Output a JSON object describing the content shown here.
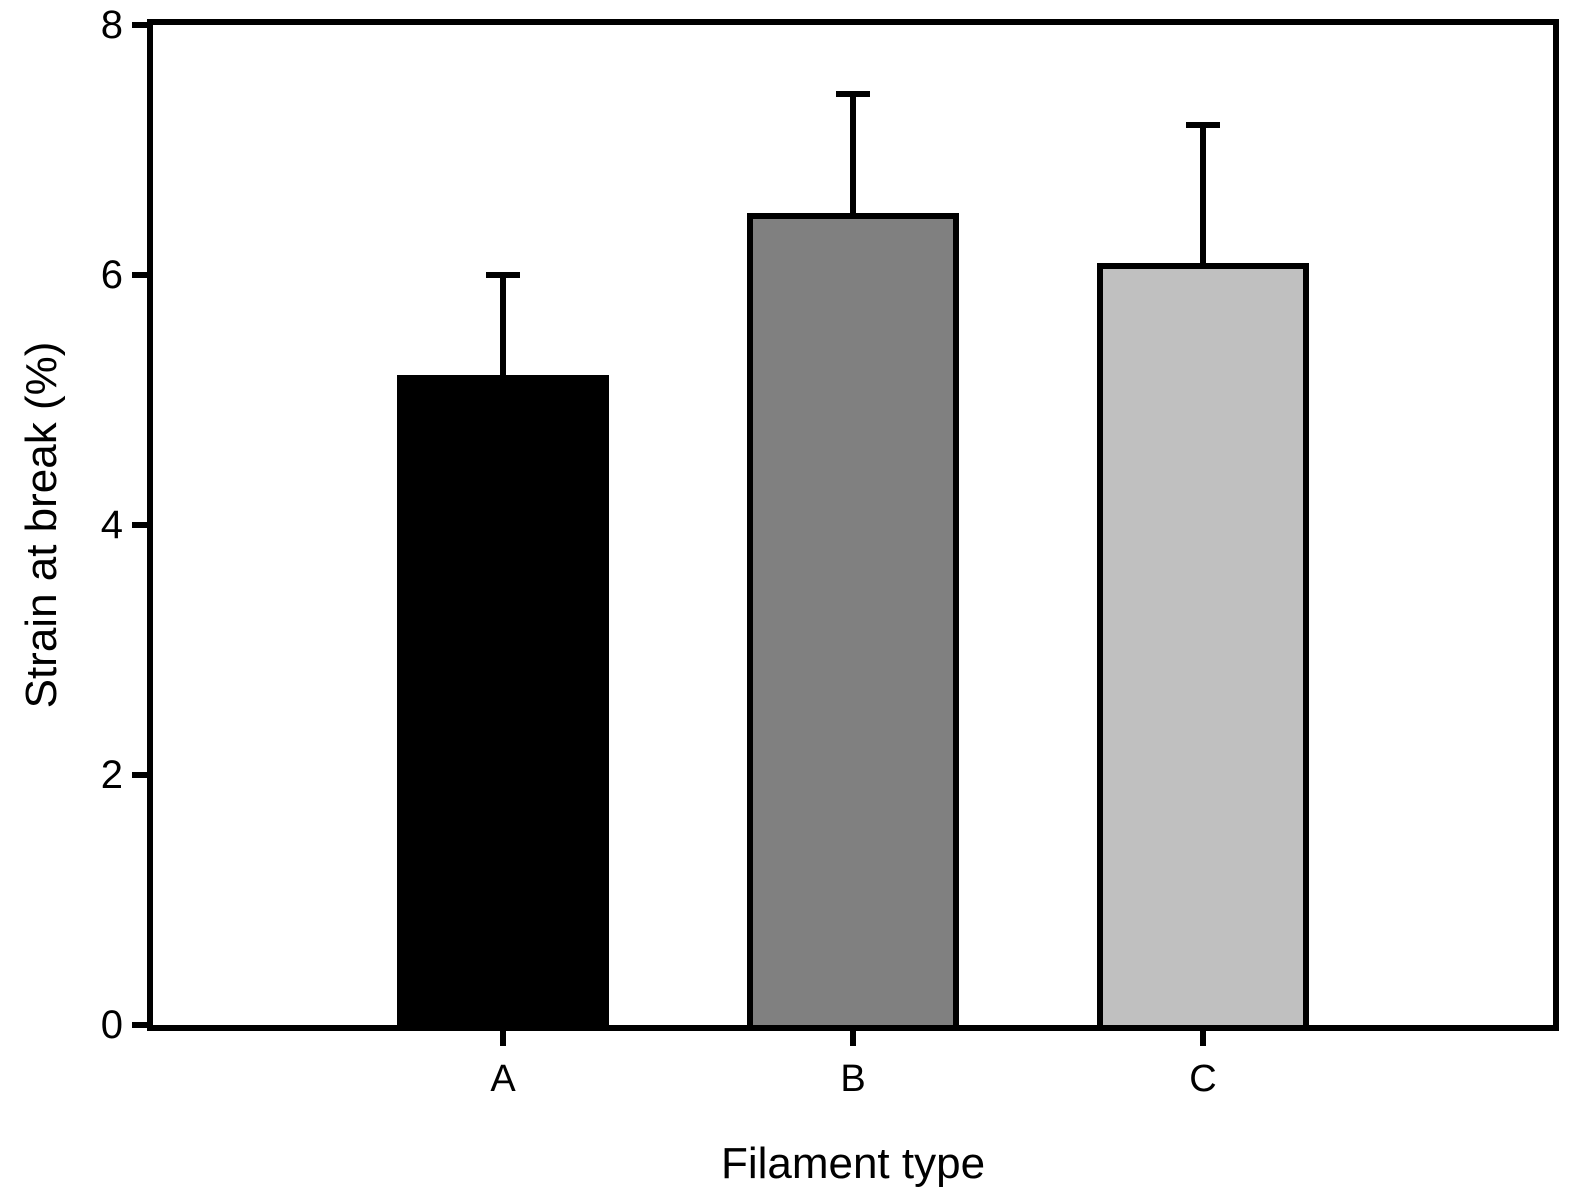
{
  "chart_data": {
    "type": "bar",
    "categories": [
      "A",
      "B",
      "C"
    ],
    "values": [
      5.2,
      6.5,
      6.1
    ],
    "error_plus": [
      0.8,
      0.95,
      1.1
    ],
    "bar_colors": [
      "#000000",
      "#808080",
      "#c0c0c0"
    ],
    "bar_edge_color": "#000000",
    "title": "",
    "xlabel": "Filament type",
    "ylabel": "Strain at break (%)",
    "ylim": [
      0,
      8
    ],
    "yticks": [
      0,
      2,
      4,
      6,
      8
    ],
    "grid": false,
    "legend": "none",
    "frame": "full-box",
    "background": "#ffffff"
  }
}
